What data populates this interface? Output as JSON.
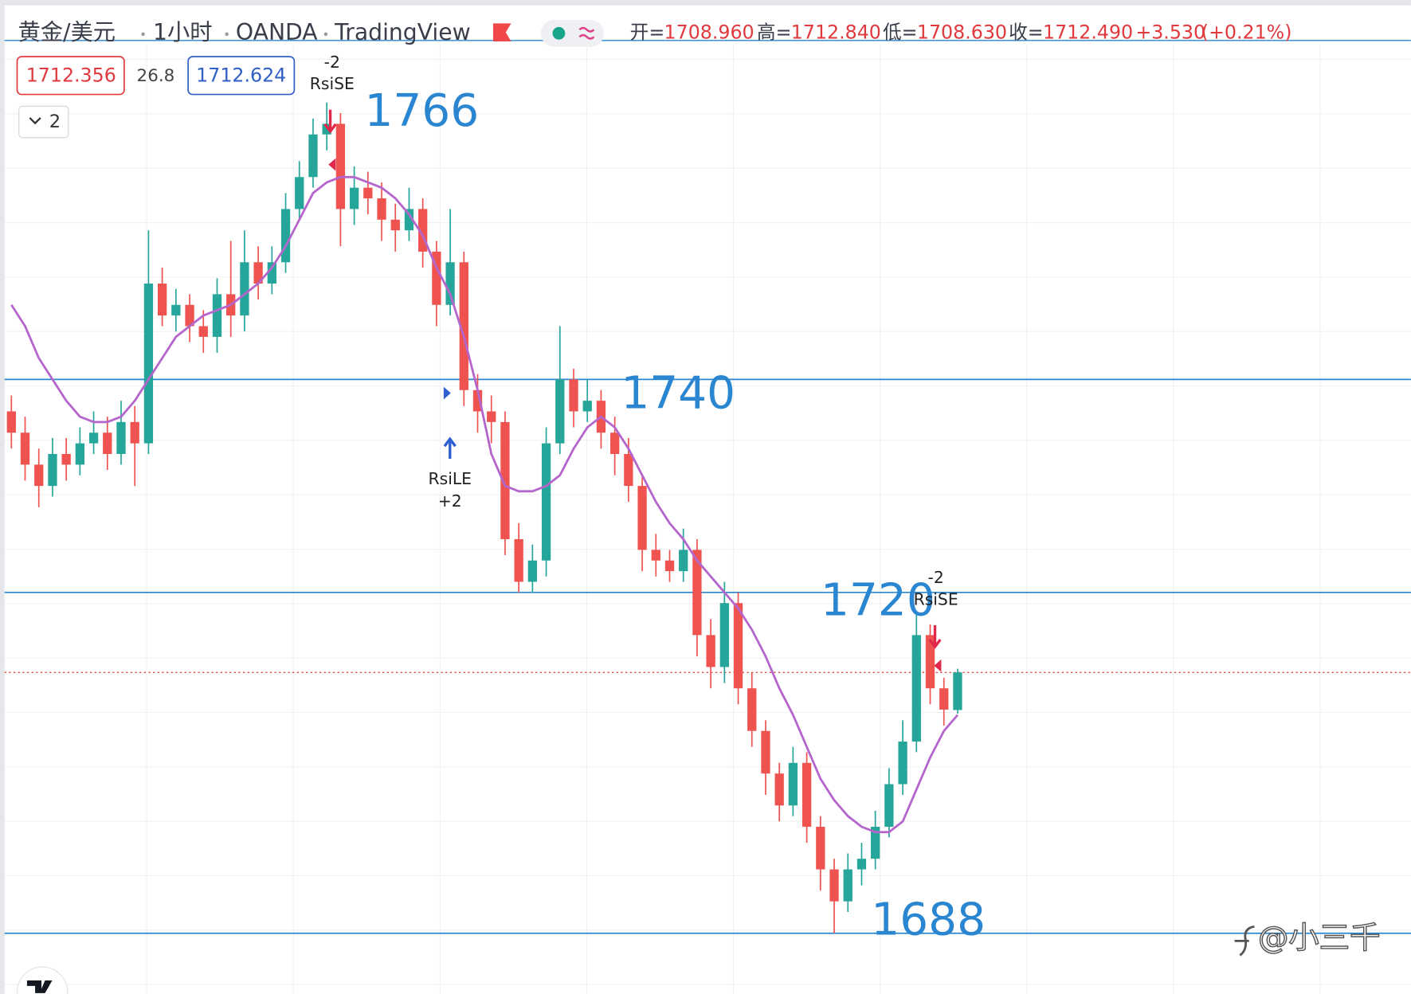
{
  "header": {
    "symbol": "黄金/美元",
    "interval": "1小时",
    "source": "OANDA",
    "platform": "TradingView",
    "ohlc": [
      {
        "key": "开=",
        "value": "1708.960"
      },
      {
        "key": "高=",
        "value": "1712.840"
      },
      {
        "key": "低=",
        "value": "1708.630"
      },
      {
        "key": "收=",
        "value": "1712.490"
      }
    ],
    "change": "+3.530",
    "change_pct": "(+0.21%)"
  },
  "toolbar": {
    "sell_price": 1712.356,
    "spread": 26.8,
    "buy_price": 1712.624,
    "collapse": "2"
  },
  "watermark": "@小三千",
  "chart_data": {
    "type": "candlestick",
    "ylim": [
      1682.3,
      1771.4
    ],
    "up_color": "#26a69a",
    "down_color": "#ef5350",
    "open": [
      1737,
      1735,
      1732,
      1730,
      1733,
      1732,
      1734,
      1735,
      1733,
      1736,
      1734,
      1749,
      1746,
      1747,
      1745,
      1744,
      1748,
      1746,
      1751,
      1749,
      1751,
      1756,
      1759,
      1763,
      1764,
      1756,
      1758,
      1757,
      1755,
      1754,
      1756,
      1752,
      1747,
      1751,
      1739,
      1737,
      1736,
      1725,
      1721,
      1723,
      1734,
      1740,
      1737,
      1738,
      1735,
      1733,
      1730,
      1724,
      1723,
      1722,
      1724,
      1716,
      1713,
      1719,
      1711,
      1707,
      1703,
      1700,
      1704,
      1698,
      1694,
      1691,
      1694,
      1695,
      1698,
      1702,
      1706,
      1716,
      1711,
      1708.96
    ],
    "high": [
      1738.5,
      1736.5,
      1733.5,
      1734.5,
      1734.5,
      1735.5,
      1737,
      1736.5,
      1738,
      1737.5,
      1754,
      1750.5,
      1748.5,
      1748,
      1746.5,
      1749.5,
      1753,
      1754,
      1752.5,
      1752.5,
      1757.5,
      1760.5,
      1764.5,
      1766,
      1765,
      1760,
      1759.5,
      1758.5,
      1756.5,
      1758,
      1757,
      1753,
      1756,
      1752,
      1740.5,
      1738.5,
      1737,
      1726.5,
      1724.5,
      1735.5,
      1745,
      1741,
      1740,
      1739,
      1736.5,
      1734.5,
      1731,
      1725.5,
      1724,
      1726,
      1725,
      1717.5,
      1721,
      1720,
      1712.5,
      1708,
      1704,
      1705.5,
      1705,
      1699,
      1695,
      1695.5,
      1696.5,
      1699.5,
      1703.5,
      1708,
      1718,
      1717,
      1712,
      1712.84
    ],
    "low": [
      1733.5,
      1730.5,
      1728,
      1729,
      1730.5,
      1731,
      1733,
      1731.5,
      1732,
      1730,
      1733,
      1745,
      1744.5,
      1743.5,
      1742.5,
      1742.5,
      1744,
      1744.5,
      1747.5,
      1748,
      1750,
      1755,
      1758,
      1761.5,
      1752.5,
      1754.5,
      1755.5,
      1753,
      1752,
      1753,
      1750.5,
      1745,
      1746,
      1737.5,
      1735,
      1734,
      1723.5,
      1720,
      1720,
      1721.5,
      1733,
      1735.5,
      1736,
      1733.5,
      1731,
      1728.5,
      1722,
      1721.5,
      1721,
      1721,
      1714,
      1711,
      1711.5,
      1709.5,
      1705.5,
      1701,
      1698.5,
      1699,
      1696.5,
      1692,
      1688,
      1690,
      1692.5,
      1694,
      1697,
      1701,
      1705,
      1709.5,
      1707.5,
      1708.63
    ],
    "close": [
      1735,
      1732,
      1730,
      1733,
      1732,
      1734,
      1735,
      1733,
      1736,
      1734,
      1749,
      1746,
      1747,
      1745,
      1744,
      1748,
      1746,
      1751,
      1749,
      1751,
      1756,
      1759,
      1763,
      1764,
      1756,
      1758,
      1757,
      1755,
      1754,
      1756,
      1752,
      1747,
      1751,
      1739,
      1737,
      1736,
      1725,
      1721,
      1723,
      1734,
      1740,
      1737,
      1738,
      1735,
      1733,
      1730,
      1724,
      1723,
      1722,
      1724,
      1716,
      1713,
      1719,
      1711,
      1707,
      1703,
      1700,
      1704,
      1698,
      1694,
      1691,
      1694,
      1695,
      1698,
      1702,
      1706,
      1716,
      1711,
      1709,
      1712.49
    ],
    "ma": {
      "color": "#b566cc",
      "values": [
        1747,
        1745,
        1742,
        1740,
        1738,
        1736.5,
        1736,
        1736,
        1736.5,
        1738,
        1740,
        1742,
        1744,
        1745,
        1746,
        1746.5,
        1747,
        1748,
        1749,
        1750.5,
        1752.5,
        1755,
        1757.5,
        1758.5,
        1759,
        1759,
        1758.5,
        1758,
        1757,
        1755.5,
        1753.5,
        1750.5,
        1748,
        1744,
        1739,
        1733,
        1730,
        1729.5,
        1729.5,
        1730,
        1731,
        1733.5,
        1735.5,
        1736.5,
        1735.5,
        1733.5,
        1731,
        1728.5,
        1726.5,
        1725,
        1723,
        1721.5,
        1720,
        1718.5,
        1716.5,
        1714,
        1711,
        1708.5,
        1705.5,
        1702.5,
        1700.5,
        1699,
        1698,
        1697.5,
        1697.5,
        1698.5,
        1701.5,
        1704.5,
        1707,
        1708.5
      ]
    },
    "levels": {
      "color": "#2a86d0",
      "values": [
        1740,
        1720,
        1688
      ]
    },
    "peak_label": 1766,
    "last_price_color": "#e04848",
    "signals": [
      {
        "qty": "-2",
        "name": "RsiSE"
      },
      {
        "name": "RsiLE",
        "qty": "+2"
      },
      {
        "qty": "-2",
        "name": "RsiSE"
      }
    ]
  }
}
